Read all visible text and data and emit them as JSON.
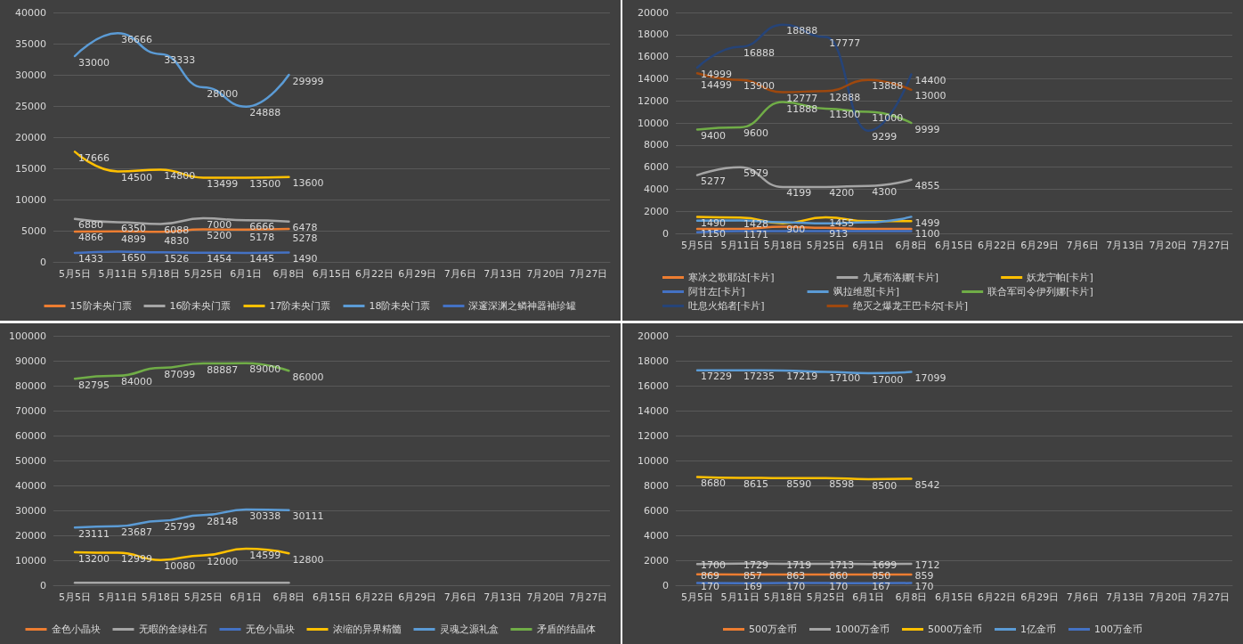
{
  "chart_data": [
    {
      "type": "line",
      "categories": [
        "5月5日",
        "5月11日",
        "5月18日",
        "5月25日",
        "6月1日",
        "6月8日",
        "6月15日",
        "6月22日",
        "6月29日",
        "7月6日",
        "7月13日",
        "7月20日",
        "7月27日"
      ],
      "ylim": [
        0,
        40000
      ],
      "yticks": [
        0,
        5000,
        10000,
        15000,
        20000,
        25000,
        30000,
        35000,
        40000
      ],
      "grid": "y",
      "legend": "bottom",
      "data_labels": true,
      "marker": "none",
      "line_style": "solid",
      "series": [
        {
          "name": "15阶未央门票",
          "color": "#ed7d31",
          "values": [
            4866,
            4899,
            4830,
            5200,
            5178,
            5278,
            null,
            null,
            null,
            null,
            null,
            null,
            null
          ]
        },
        {
          "name": "16阶未央门票",
          "color": "#a5a5a5",
          "values": [
            6880,
            6350,
            6088,
            7000,
            6666,
            6478,
            null,
            null,
            null,
            null,
            null,
            null,
            null
          ]
        },
        {
          "name": "17阶未央门票",
          "color": "#ffc000",
          "values": [
            17666,
            14500,
            14800,
            13499,
            13500,
            13600,
            null,
            null,
            null,
            null,
            null,
            null,
            null
          ]
        },
        {
          "name": "18阶未央门票",
          "color": "#5b9bd5",
          "values": [
            33000,
            36666,
            33333,
            28000,
            24888,
            29999,
            null,
            null,
            null,
            null,
            null,
            null,
            null
          ]
        },
        {
          "name": "深邃深渊之鳞神器袖珍罐",
          "color": "#4472c4",
          "values": [
            1433,
            1650,
            1526,
            1454,
            1445,
            1490,
            null,
            null,
            null,
            null,
            null,
            null,
            null
          ]
        }
      ]
    },
    {
      "type": "line",
      "categories": [
        "5月5日",
        "5月11日",
        "5月18日",
        "5月25日",
        "6月1日",
        "6月8日",
        "6月15日",
        "6月22日",
        "6月29日",
        "7月6日",
        "7月13日",
        "7月20日",
        "7月27日"
      ],
      "ylim": [
        0,
        20000
      ],
      "yticks": [
        0,
        2000,
        4000,
        6000,
        8000,
        10000,
        12000,
        14000,
        16000,
        18000,
        20000
      ],
      "grid": "y",
      "legend": "bottom",
      "data_labels": true,
      "marker": "none",
      "line_style": "solid",
      "series": [
        {
          "name": "寒冰之歌耶达[卡片]",
          "color": "#ed7d31",
          "values": [
            400,
            400,
            600,
            500,
            400,
            400,
            null,
            null,
            null,
            null,
            null,
            null,
            null
          ],
          "value_labels": [
            null,
            null,
            null,
            null,
            null,
            null,
            null,
            null,
            null,
            null,
            null,
            null,
            null
          ]
        },
        {
          "name": "九尾布洛娜[卡片]",
          "color": "#a5a5a5",
          "values": [
            5277,
            5979,
            4199,
            4200,
            4300,
            4855,
            null,
            null,
            null,
            null,
            null,
            null,
            null
          ]
        },
        {
          "name": "妖龙宁帕[卡片]",
          "color": "#ffc000",
          "values": [
            1490,
            1428,
            900,
            1455,
            1100,
            1100,
            null,
            null,
            null,
            null,
            null,
            null,
            null
          ],
          "value_labels": [
            "1490",
            "1428",
            "900",
            "1455",
            null,
            "1100",
            null,
            null,
            null,
            null,
            null,
            null,
            null
          ]
        },
        {
          "name": "阿甘左[卡片]",
          "color": "#4472c4",
          "values": [
            100,
            200,
            200,
            200,
            200,
            200,
            null,
            null,
            null,
            null,
            null,
            null,
            null
          ],
          "value_labels": [
            null,
            null,
            null,
            null,
            null,
            null,
            null,
            null,
            null,
            null,
            null,
            null,
            null
          ]
        },
        {
          "name": "飒拉维恩[卡片]",
          "color": "#5b9bd5",
          "values": [
            1150,
            1171,
            1000,
            913,
            1000,
            1499,
            null,
            null,
            null,
            null,
            null,
            null,
            null
          ],
          "value_labels": [
            "1150",
            "1171",
            null,
            "913",
            null,
            "1499",
            null,
            null,
            null,
            null,
            null,
            null,
            null
          ]
        },
        {
          "name": "联合军司令伊列娜[卡片]",
          "color": "#70ad47",
          "values": [
            9400,
            9600,
            11888,
            11300,
            11000,
            9999,
            null,
            null,
            null,
            null,
            null,
            null,
            null
          ]
        },
        {
          "name": "吐息火焰者[卡片]",
          "color": "#264478",
          "values": [
            14999,
            16888,
            18888,
            17777,
            9299,
            14400,
            null,
            null,
            null,
            null,
            null,
            null,
            null
          ]
        },
        {
          "name": "绝灭之爆龙王巴卡尔[卡片]",
          "color": "#9e480e",
          "values": [
            14499,
            13900,
            12777,
            12888,
            13888,
            13000,
            null,
            null,
            null,
            null,
            null,
            null,
            null
          ]
        }
      ]
    },
    {
      "type": "line",
      "categories": [
        "5月5日",
        "5月11日",
        "5月18日",
        "5月25日",
        "6月1日",
        "6月8日",
        "6月15日",
        "6月22日",
        "6月29日",
        "7月6日",
        "7月13日",
        "7月20日",
        "7月27日"
      ],
      "ylim": [
        0,
        100000
      ],
      "yticks": [
        0,
        10000,
        20000,
        30000,
        40000,
        50000,
        60000,
        70000,
        80000,
        90000,
        100000
      ],
      "grid": "y",
      "legend": "bottom",
      "data_labels": true,
      "marker": "none",
      "line_style": "solid",
      "series": [
        {
          "name": "金色小晶块",
          "color": "#ed7d31",
          "values": [
            null,
            null,
            null,
            null,
            null,
            null,
            null,
            null,
            null,
            null,
            null,
            null,
            null
          ]
        },
        {
          "name": "无暇的金绿柱石",
          "color": "#a5a5a5",
          "values": [
            1000,
            1000,
            1000,
            1000,
            1000,
            1000,
            null,
            null,
            null,
            null,
            null,
            null,
            null
          ],
          "value_labels": [
            null,
            null,
            null,
            null,
            null,
            null,
            null,
            null,
            null,
            null,
            null,
            null,
            null
          ]
        },
        {
          "name": "无色小晶块",
          "color": "#4472c4",
          "values": [
            null,
            null,
            null,
            null,
            null,
            null,
            null,
            null,
            null,
            null,
            null,
            null,
            null
          ]
        },
        {
          "name": "浓缩的异界精髓",
          "color": "#ffc000",
          "values": [
            13200,
            12999,
            10080,
            12000,
            14599,
            12800,
            null,
            null,
            null,
            null,
            null,
            null,
            null
          ]
        },
        {
          "name": "灵魂之源礼盒",
          "color": "#5b9bd5",
          "values": [
            23111,
            23687,
            25799,
            28148,
            30338,
            30111,
            null,
            null,
            null,
            null,
            null,
            null,
            null
          ]
        },
        {
          "name": "矛盾的结晶体",
          "color": "#70ad47",
          "values": [
            82795,
            84000,
            87099,
            88887,
            89000,
            86000,
            null,
            null,
            null,
            null,
            null,
            null,
            null
          ]
        }
      ]
    },
    {
      "type": "line",
      "categories": [
        "5月5日",
        "5月11日",
        "5月18日",
        "5月25日",
        "6月1日",
        "6月8日",
        "6月15日",
        "6月22日",
        "6月29日",
        "7月6日",
        "7月13日",
        "7月20日",
        "7月27日"
      ],
      "ylim": [
        0,
        20000
      ],
      "yticks": [
        0,
        2000,
        4000,
        6000,
        8000,
        10000,
        12000,
        14000,
        16000,
        18000,
        20000
      ],
      "grid": "y",
      "legend": "bottom",
      "data_labels": true,
      "marker": "none",
      "line_style": "solid",
      "series": [
        {
          "name": "500万金币",
          "color": "#ed7d31",
          "values": [
            869,
            857,
            863,
            860,
            850,
            859,
            null,
            null,
            null,
            null,
            null,
            null,
            null
          ]
        },
        {
          "name": "1000万金币",
          "color": "#a5a5a5",
          "values": [
            1700,
            1729,
            1719,
            1713,
            1699,
            1712,
            null,
            null,
            null,
            null,
            null,
            null,
            null
          ]
        },
        {
          "name": "5000万金币",
          "color": "#ffc000",
          "values": [
            8680,
            8615,
            8590,
            8598,
            8500,
            8542,
            null,
            null,
            null,
            null,
            null,
            null,
            null
          ]
        },
        {
          "name": "1亿金币",
          "color": "#5b9bd5",
          "values": [
            17229,
            17235,
            17219,
            17100,
            17000,
            17099,
            null,
            null,
            null,
            null,
            null,
            null,
            null
          ]
        },
        {
          "name": "100万金币",
          "color": "#4472c4",
          "values": [
            170,
            169,
            170,
            170,
            167,
            170,
            null,
            null,
            null,
            null,
            null,
            null,
            null
          ]
        }
      ]
    }
  ]
}
